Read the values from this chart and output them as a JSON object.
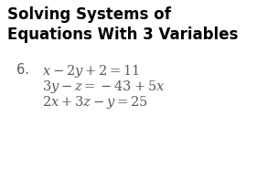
{
  "title_line1": "Solving Systems of",
  "title_line2": "Equations With 3 Variables",
  "problem_number": "6.",
  "eq1": "$x - 2y + 2 = 11$",
  "eq2": "$3y - z = -43 + 5x$",
  "eq3": "$2x + 3z - y = 25$",
  "bg_color": "#ffffff",
  "title_color": "#000000",
  "eq_color": "#5a5a5a",
  "title_fontsize": 12.0,
  "eq_fontsize": 10.5,
  "number_fontsize": 10.5
}
